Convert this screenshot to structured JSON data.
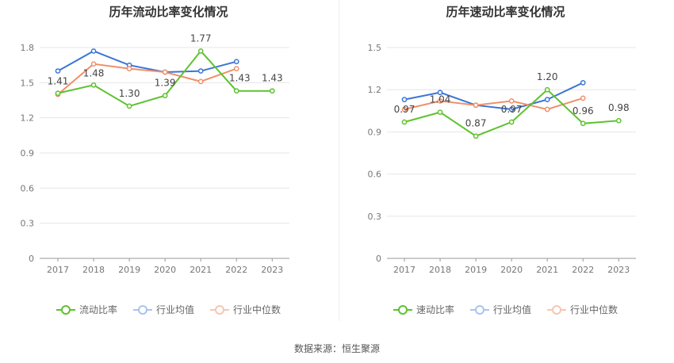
{
  "source": "数据来源：恒生聚源",
  "colors": {
    "company": "#5ec22f",
    "industry_avg": "#3a75d6",
    "industry_median": "#f0906a"
  },
  "chart_data": [
    {
      "type": "line",
      "title": "历年流动比率变化情况",
      "categories": [
        "2017",
        "2018",
        "2019",
        "2020",
        "2021",
        "2022",
        "2023"
      ],
      "ylim": [
        0,
        1.8
      ],
      "yticks": [
        "0",
        "0.3",
        "0.6",
        "0.9",
        "1.2",
        "1.5",
        "1.8"
      ],
      "grid": true,
      "legend_position": "bottom",
      "series": [
        {
          "name": "流动比率",
          "key": "company",
          "values": [
            1.41,
            1.48,
            1.3,
            1.39,
            1.77,
            1.43,
            1.43
          ],
          "labels": [
            "1.41",
            "1.48",
            "1.30",
            "1.39",
            "1.77",
            "1.43",
            "1.43"
          ]
        },
        {
          "name": "行业均值",
          "key": "industry_avg",
          "values": [
            1.6,
            1.77,
            1.65,
            1.59,
            1.6,
            1.68,
            null
          ]
        },
        {
          "name": "行业中位数",
          "key": "industry_median",
          "values": [
            1.4,
            1.66,
            1.62,
            1.59,
            1.51,
            1.62,
            null
          ]
        }
      ]
    },
    {
      "type": "line",
      "title": "历年速动比率变化情况",
      "categories": [
        "2017",
        "2018",
        "2019",
        "2020",
        "2021",
        "2022",
        "2023"
      ],
      "ylim": [
        0,
        1.5
      ],
      "yticks": [
        "0",
        "0.3",
        "0.6",
        "0.9",
        "1.2",
        "1.5"
      ],
      "grid": true,
      "legend_position": "bottom",
      "series": [
        {
          "name": "速动比率",
          "key": "company",
          "values": [
            0.97,
            1.04,
            0.87,
            0.97,
            1.2,
            0.96,
            0.98
          ],
          "labels": [
            "0.97",
            "1.04",
            "0.87",
            "0.97",
            "1.20",
            "0.96",
            "0.98"
          ]
        },
        {
          "name": "行业均值",
          "key": "industry_avg",
          "values": [
            1.13,
            1.18,
            1.09,
            1.06,
            1.13,
            1.25,
            null
          ]
        },
        {
          "name": "行业中位数",
          "key": "industry_median",
          "values": [
            1.06,
            1.12,
            1.09,
            1.12,
            1.06,
            1.14,
            null
          ]
        }
      ]
    }
  ]
}
